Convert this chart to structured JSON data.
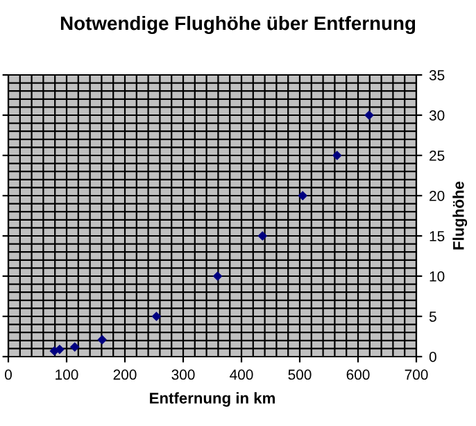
{
  "chart_data": {
    "type": "scatter",
    "title": "Notwendige Flughöhe über Entfernung",
    "xlabel": "Entfernung in km",
    "ylabel": "Flughöhe",
    "x": [
      79,
      88,
      114,
      161,
      254,
      359,
      436,
      505,
      564,
      619
    ],
    "values": [
      0.7,
      0.9,
      1.2,
      2.1,
      5,
      10,
      15,
      20,
      25,
      30
    ],
    "color": "#000080",
    "marker": "diamond",
    "xlim": [
      0,
      700
    ],
    "xticks": [
      0,
      100,
      200,
      300,
      400,
      500,
      600,
      700
    ],
    "ylim": [
      0,
      35
    ],
    "yticks": [
      0,
      5,
      10,
      15,
      20,
      25,
      30,
      35
    ],
    "grid": true
  }
}
